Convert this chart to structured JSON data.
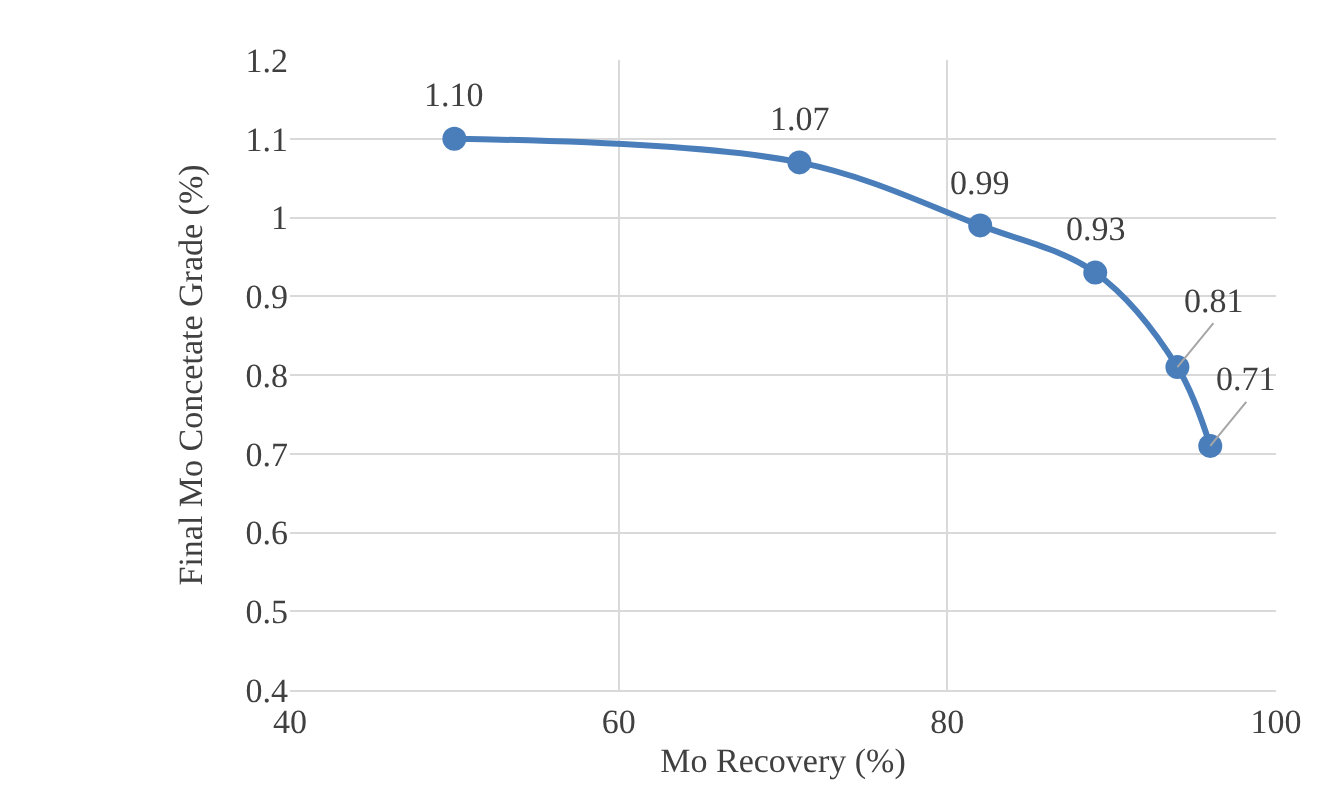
{
  "chart_data": {
    "type": "line",
    "xlabel": "Mo Recovery (%)",
    "ylabel": "Final Mo Concetate Grade (%)",
    "x": [
      50,
      71,
      82,
      89,
      94,
      96
    ],
    "series": [
      {
        "color": "#4a7ebb",
        "values": [
          1.1,
          1.07,
          0.99,
          0.93,
          0.81,
          0.71
        ],
        "value_labels": [
          "1.10",
          "1.07",
          "0.99",
          "0.93",
          "0.81",
          "0.71"
        ]
      }
    ],
    "xlim": [
      40,
      100
    ],
    "xticks": [
      40,
      60,
      80,
      100
    ],
    "ylim": [
      0.4,
      1.2
    ],
    "yticks": [
      0.4,
      0.5,
      0.6,
      0.7,
      0.8,
      0.9,
      1,
      1.1,
      1.2
    ],
    "grid": true,
    "marker": "circle",
    "line_style": "solid"
  }
}
